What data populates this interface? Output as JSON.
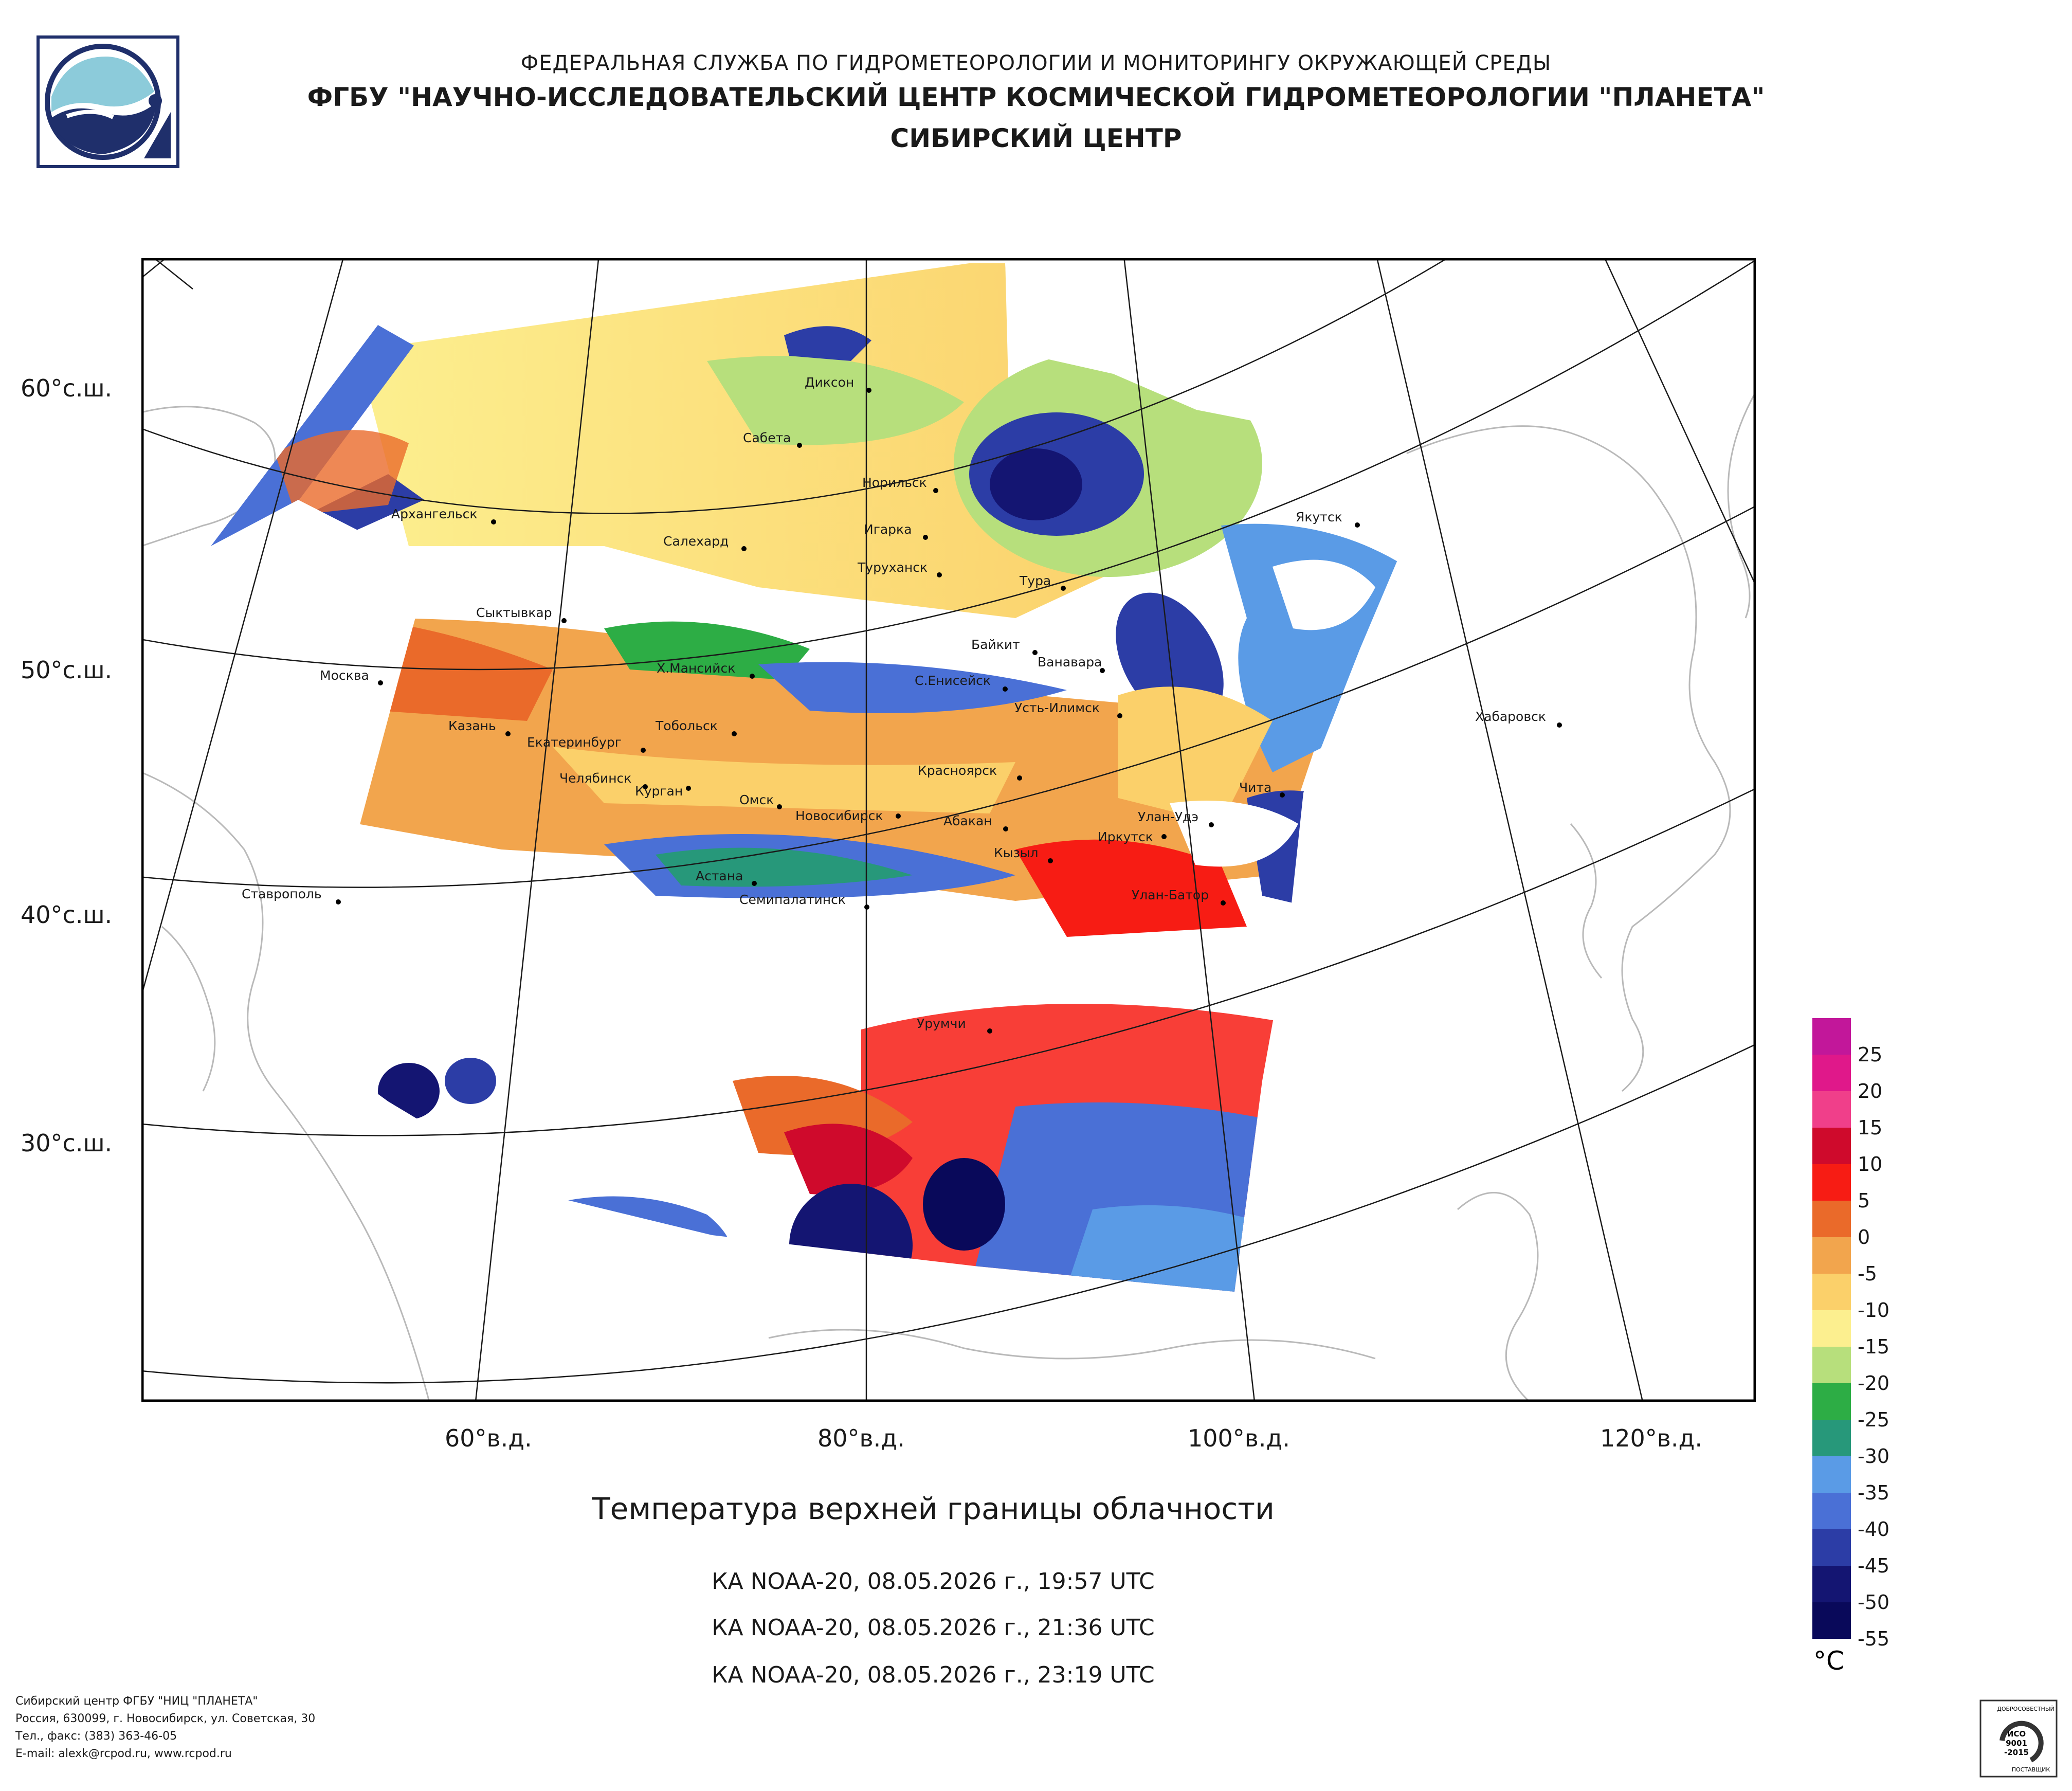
{
  "header": {
    "org": "ФЕДЕРАЛЬНАЯ СЛУЖБА ПО ГИДРОМЕТЕОРОЛОГИИ И МОНИТОРИНГУ ОКРУЖАЮЩЕЙ СРЕДЫ",
    "institute": "ФГБУ \"НАУЧНО-ИССЛЕДОВАТЕЛЬСКИЙ ЦЕНТР КОСМИЧЕСКОЙ ГИДРОМЕТЕОРОЛОГИИ \"ПЛАНЕТА\"",
    "department": "СИБИРСКИЙ ЦЕНТР"
  },
  "map": {
    "title": "Температура верхней границы облачности",
    "lat_labels": [
      "60°с.ш.",
      "50°с.ш.",
      "40°с.ш.",
      "30°с.ш."
    ],
    "lon_labels": [
      "60°в.д.",
      "80°в.д.",
      "100°в.д.",
      "120°в.д."
    ],
    "cities": [
      "Диксон",
      "Сабета",
      "Норильск",
      "Игарка",
      "Архангельск",
      "Салехард",
      "Туруханск",
      "Тура",
      "Якутск",
      "Сыктывкар",
      "Байкит",
      "Ванавара",
      "Москва",
      "Х.Мансийск",
      "С.Енисейск",
      "Усть-Илимск",
      "Хабаровск",
      "Казань",
      "Екатеринбург",
      "Тобольск",
      "Красноярск",
      "Чита",
      "Челябинск",
      "Курган",
      "Омск",
      "Новосибирск",
      "Абакан",
      "Улан-Удэ",
      "Иркутск",
      "Кызыл",
      "Астана",
      "Ставрополь",
      "Семипалатинск",
      "Улан-Батор",
      "Урумчи"
    ]
  },
  "passes": [
    "КА NOAA-20, 08.05.2026 г., 19:57 UTC",
    "КА NOAA-20, 08.05.2026 г., 21:36 UTC",
    "КА NOAA-20, 08.05.2026 г., 23:19 UTC"
  ],
  "legend": {
    "unit": "°C",
    "labels": [
      "25",
      "20",
      "15",
      "10",
      "5",
      "0",
      "-5",
      "-10",
      "-15",
      "-20",
      "-25",
      "-30",
      "-35",
      "-40",
      "-45",
      "-50",
      "-55"
    ],
    "colors": [
      "#c2179a",
      "#e0188a",
      "#f03f8a",
      "#cf0a2c",
      "#f71c14",
      "#ea6a2a",
      "#f2a54d",
      "#fbd06a",
      "#fcef8f",
      "#b7df7c",
      "#2dad45",
      "#27987a",
      "#5a9be6",
      "#4a70d6",
      "#2c3da6",
      "#141572",
      "#09095a"
    ]
  },
  "footer": [
    "Сибирский центр ФГБУ \"НИЦ \"ПЛАНЕТА\"",
    "Россия, 630099, г. Новосибирск, ул. Советская, 30",
    "Тел., факс: (383) 363-46-05",
    "E-mail: alexk@rcpod.ru, www.rcpod.ru"
  ],
  "cert": {
    "top": "ДОБРОСОВЕСТНЫЙ",
    "middle": [
      "ИСО",
      "9001",
      "-2015"
    ],
    "bottom": "ПОСТАВЩИК"
  }
}
